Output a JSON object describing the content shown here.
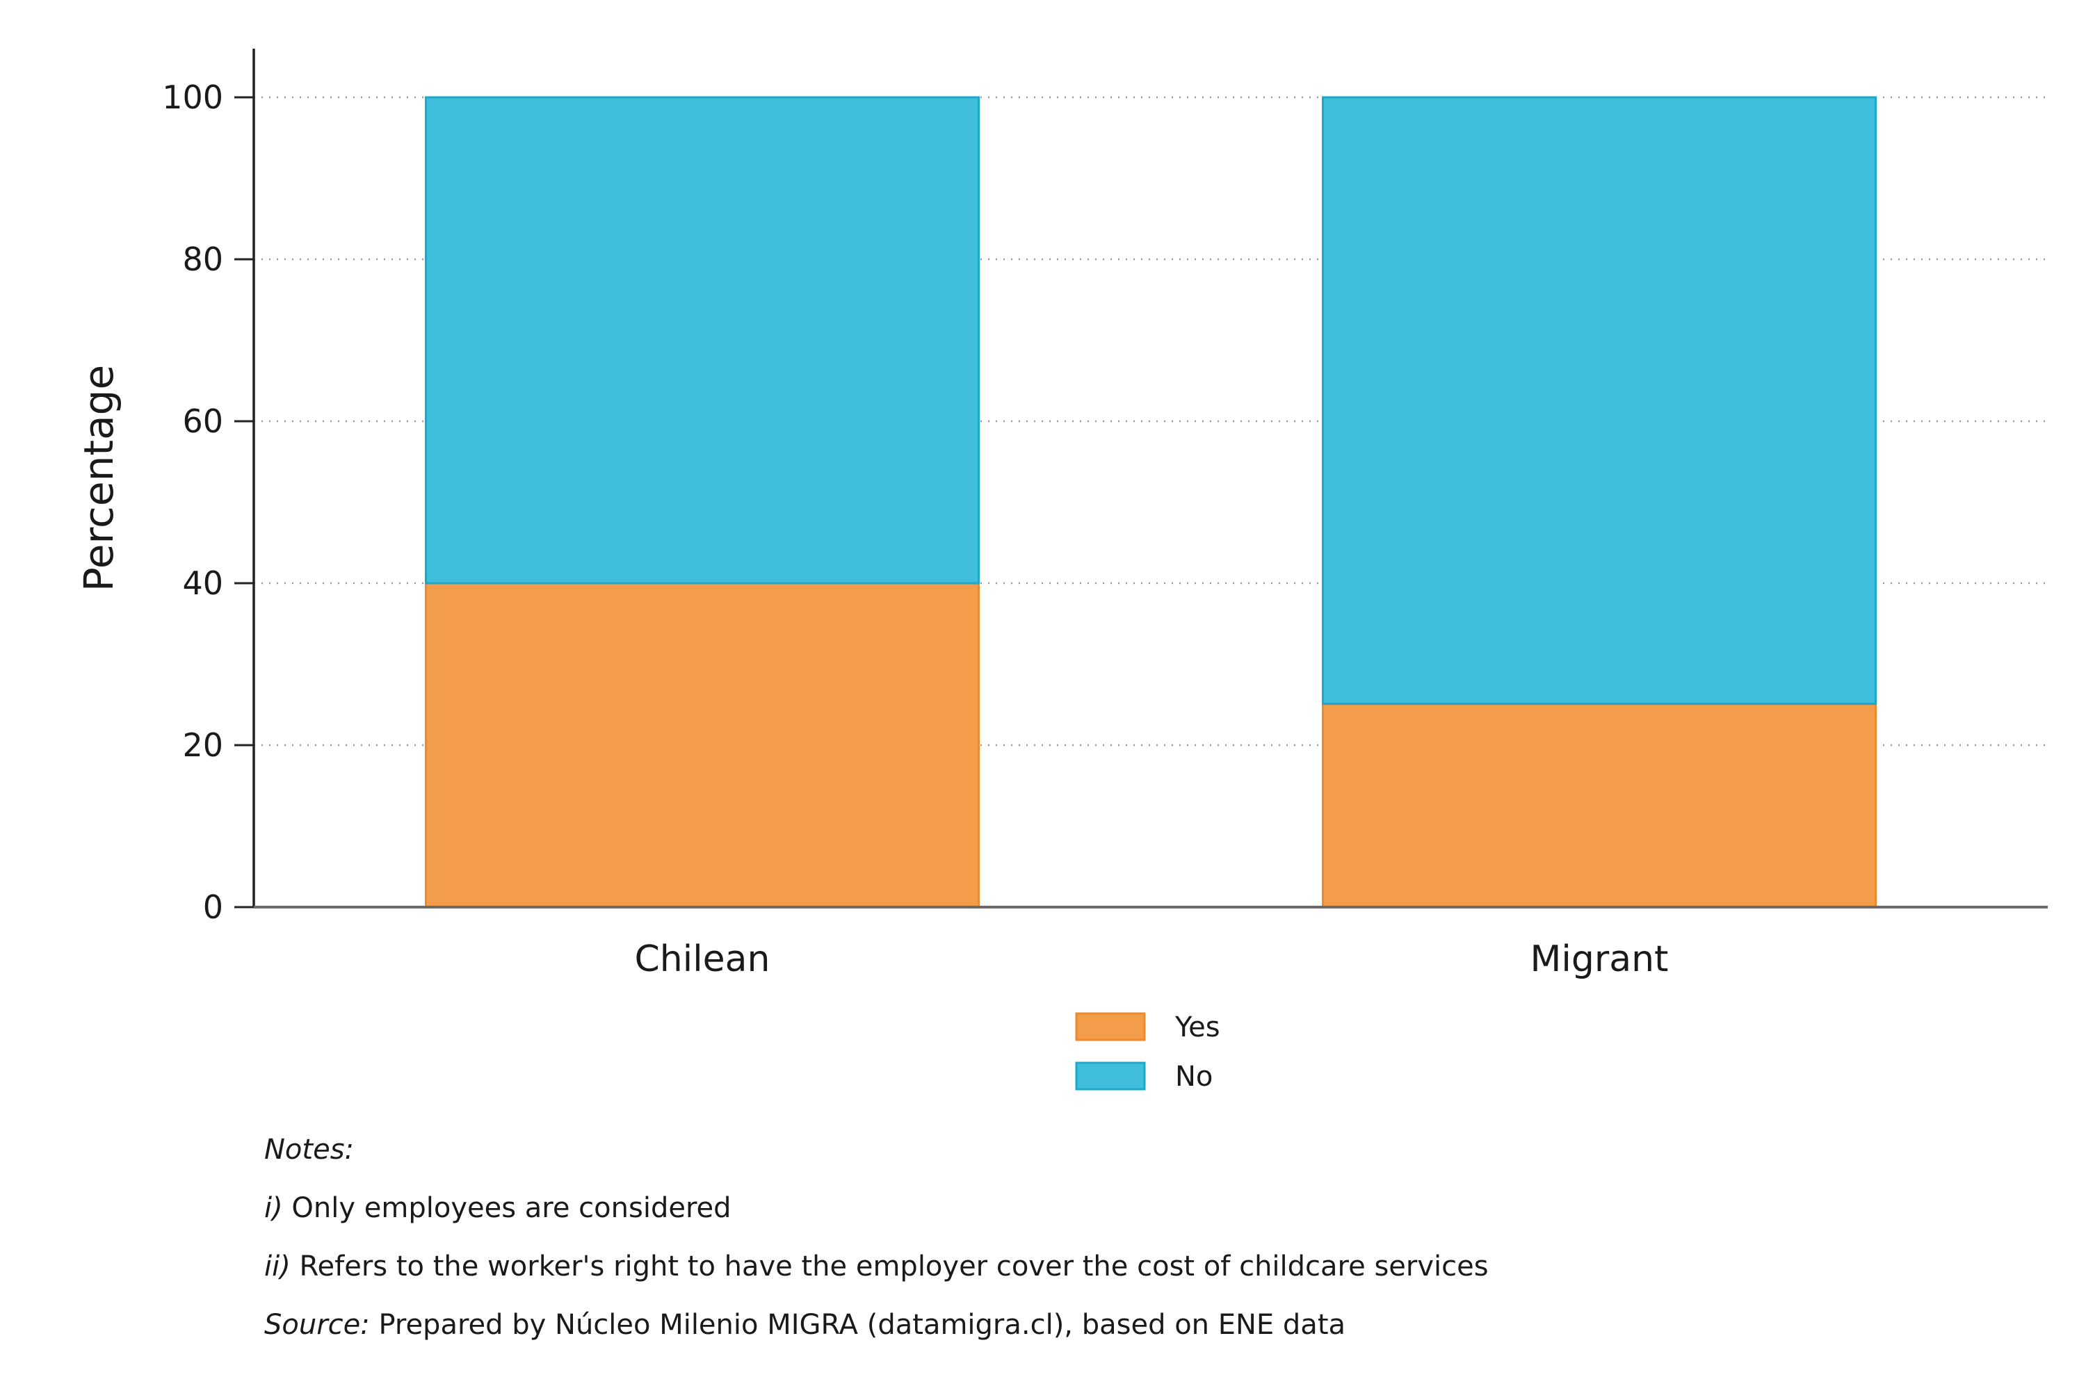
{
  "chart_data": {
    "type": "bar",
    "stacked": true,
    "categories": [
      "Chilean",
      "Migrant"
    ],
    "series": [
      {
        "name": "Yes",
        "values": [
          40.0,
          25.1
        ],
        "color": "#F39C4A",
        "stroke": "#EE8A2E"
      },
      {
        "name": "No",
        "values": [
          60.0,
          74.9
        ],
        "color": "#42BEDD",
        "stroke": "#1AA9CC"
      }
    ],
    "ylabel": "Percentage",
    "xlabel": "",
    "ylim": [
      0,
      105
    ],
    "yticks": [
      0,
      20,
      40,
      60,
      80,
      100
    ],
    "grid": "horizontal-dotted",
    "legend_position": "bottom-center"
  },
  "notes": {
    "heading": "Notes:",
    "items": [
      {
        "prefix": "i)",
        "text": " Only employees are considered"
      },
      {
        "prefix": "ii)",
        "text": " Refers to the worker's right to have the employer cover the cost of childcare services"
      },
      {
        "prefix": "Source:",
        "text": " Prepared by Núcleo Milenio MIGRA (datamigra.cl), based on ENE data"
      }
    ]
  }
}
